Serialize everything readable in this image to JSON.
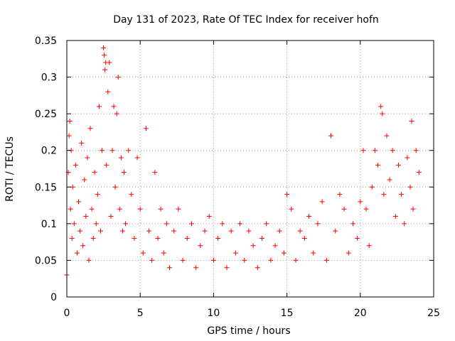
{
  "chart_data": {
    "type": "scatter",
    "title": "Day 131 of 2023, Rate Of TEC Index for receiver hofn",
    "xlabel": "GPS time / hours",
    "ylabel": "ROTI / TECUs",
    "xlim": [
      0,
      25
    ],
    "ylim": [
      0,
      0.35
    ],
    "xticks": [
      0,
      5,
      10,
      15,
      20,
      25
    ],
    "xtick_labels": [
      "0",
      "5",
      "10",
      "15",
      "20",
      "25"
    ],
    "yticks": [
      0,
      0.05,
      0.1,
      0.15,
      0.2,
      0.25,
      0.3,
      0.35
    ],
    "ytick_labels": [
      "0",
      "0.05",
      "0.1",
      "0.15",
      "0.2",
      "0.25",
      "0.3",
      "0.35"
    ],
    "grid": true,
    "marker": "plus",
    "color": "#ff0000",
    "series": [
      {
        "x": [
          0.0,
          0.1,
          0.15,
          0.2,
          0.25,
          0.3,
          0.35,
          0.4,
          0.5,
          0.6,
          0.7,
          0.8,
          0.9,
          1.0,
          1.1,
          1.2,
          1.3,
          1.4,
          1.5,
          1.6,
          1.7,
          1.8,
          1.9,
          2.0,
          2.1,
          2.2,
          2.3,
          2.4,
          2.5,
          2.55,
          2.6,
          2.65,
          2.7,
          2.8,
          2.9,
          3.0,
          3.1,
          3.2,
          3.3,
          3.4,
          3.5,
          3.6,
          3.7,
          3.8,
          3.9,
          4.0,
          4.2,
          4.4,
          4.6,
          4.8,
          5.0,
          5.2,
          5.4,
          5.6,
          5.8,
          6.0,
          6.2,
          6.4,
          6.6,
          6.8,
          7.0,
          7.3,
          7.6,
          7.9,
          8.2,
          8.5,
          8.8,
          9.1,
          9.4,
          9.7,
          10.0,
          10.3,
          10.6,
          10.9,
          11.2,
          11.5,
          11.8,
          12.1,
          12.4,
          12.7,
          13.0,
          13.3,
          13.6,
          13.9,
          14.2,
          14.5,
          14.8,
          15.0,
          15.3,
          15.6,
          15.9,
          16.2,
          16.5,
          16.8,
          17.1,
          17.4,
          17.7,
          18.0,
          18.3,
          18.6,
          18.9,
          19.2,
          19.5,
          19.8,
          20.0,
          20.2,
          20.4,
          20.6,
          20.8,
          21.0,
          21.2,
          21.4,
          21.5,
          21.6,
          21.8,
          22.0,
          22.2,
          22.4,
          22.6,
          22.8,
          23.0,
          23.2,
          23.4,
          23.5,
          23.6,
          23.8,
          24.0
        ],
        "y": [
          0.03,
          0.17,
          0.22,
          0.24,
          0.12,
          0.2,
          0.08,
          0.15,
          0.1,
          0.18,
          0.06,
          0.13,
          0.09,
          0.21,
          0.07,
          0.16,
          0.11,
          0.19,
          0.05,
          0.23,
          0.12,
          0.08,
          0.17,
          0.1,
          0.14,
          0.26,
          0.09,
          0.2,
          0.34,
          0.33,
          0.31,
          0.32,
          0.18,
          0.28,
          0.32,
          0.11,
          0.2,
          0.26,
          0.15,
          0.25,
          0.3,
          0.12,
          0.19,
          0.09,
          0.17,
          0.1,
          0.2,
          0.14,
          0.08,
          0.19,
          0.12,
          0.06,
          0.23,
          0.09,
          0.05,
          0.17,
          0.08,
          0.12,
          0.06,
          0.1,
          0.04,
          0.09,
          0.12,
          0.05,
          0.08,
          0.1,
          0.04,
          0.07,
          0.09,
          0.11,
          0.05,
          0.08,
          0.1,
          0.04,
          0.09,
          0.06,
          0.1,
          0.05,
          0.09,
          0.07,
          0.04,
          0.08,
          0.1,
          0.05,
          0.07,
          0.09,
          0.06,
          0.14,
          0.12,
          0.05,
          0.09,
          0.08,
          0.11,
          0.06,
          0.1,
          0.13,
          0.05,
          0.22,
          0.09,
          0.14,
          0.12,
          0.06,
          0.1,
          0.08,
          0.13,
          0.2,
          0.12,
          0.07,
          0.15,
          0.2,
          0.18,
          0.26,
          0.25,
          0.14,
          0.22,
          0.16,
          0.2,
          0.11,
          0.18,
          0.14,
          0.1,
          0.19,
          0.15,
          0.24,
          0.12,
          0.2,
          0.17
        ]
      }
    ]
  }
}
